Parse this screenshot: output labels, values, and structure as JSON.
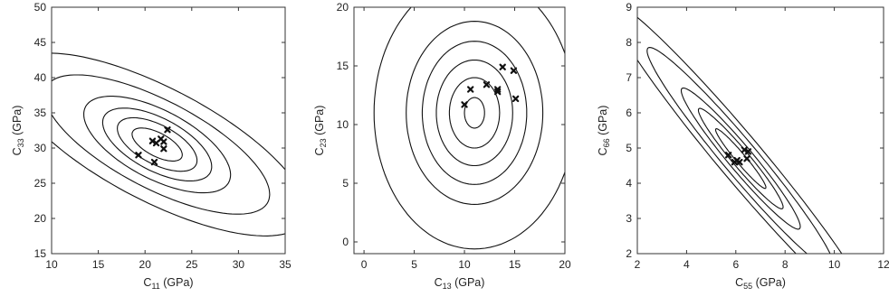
{
  "chart_data": [
    {
      "type": "contour",
      "xlabel": {
        "main": "C",
        "sub": "11",
        "unit": " (GPa)"
      },
      "ylabel": {
        "main": "C",
        "sub": "33",
        "unit": " (GPa)"
      },
      "xlim": [
        10,
        35
      ],
      "ylim": [
        15,
        50
      ],
      "xticks": [
        "10",
        "15",
        "20",
        "25",
        "30",
        "35"
      ],
      "yticks": [
        "15",
        "20",
        "25",
        "30",
        "35",
        "40",
        "45",
        "50"
      ],
      "grid": false,
      "contours": [
        {
          "center": [
            21.3,
            30.5
          ],
          "rx": 3.5,
          "ry": 12.0,
          "angle": 64
        },
        {
          "center": [
            21.3,
            30.5
          ],
          "rx": 1.2,
          "ry": 4.1,
          "angle": 64
        },
        {
          "center": [
            21.3,
            30.5
          ],
          "rx": 2.0,
          "ry": 6.5,
          "angle": 64
        },
        {
          "center": [
            21.3,
            30.5
          ],
          "rx": 2.7,
          "ry": 8.9,
          "angle": 64
        },
        {
          "center": [
            21.3,
            30.5
          ],
          "rx": 4.5,
          "ry": 18.5,
          "angle": 64
        },
        {
          "center": [
            21.3,
            30.5
          ],
          "rx": 5.8,
          "ry": 24.5,
          "angle": 64
        }
      ],
      "points": [
        {
          "x": 19.3,
          "y": 29.0
        },
        {
          "x": 20.8,
          "y": 31.0
        },
        {
          "x": 21.2,
          "y": 30.7
        },
        {
          "x": 21.7,
          "y": 31.3
        },
        {
          "x": 22.0,
          "y": 30.9
        },
        {
          "x": 22.0,
          "y": 29.9
        },
        {
          "x": 22.4,
          "y": 32.6
        },
        {
          "x": 21.0,
          "y": 28.0
        }
      ]
    },
    {
      "type": "contour",
      "xlabel": {
        "main": "C",
        "sub": "13",
        "unit": " (GPa)"
      },
      "ylabel": {
        "main": "C",
        "sub": "23",
        "unit": " (GPa)"
      },
      "xlim": [
        -1,
        20
      ],
      "ylim": [
        -1,
        20
      ],
      "xticks": [
        "0",
        "5",
        "10",
        "15",
        "20"
      ],
      "yticks": [
        "0",
        "5",
        "10",
        "15",
        "20"
      ],
      "grid": false,
      "contours": [
        {
          "center": [
            11.0,
            11.0
          ],
          "rx": 1.0,
          "ry": 1.3,
          "angle": 0
        },
        {
          "center": [
            11.0,
            11.0
          ],
          "rx": 2.5,
          "ry": 3.0,
          "angle": 0
        },
        {
          "center": [
            11.0,
            11.0
          ],
          "rx": 3.8,
          "ry": 4.5,
          "angle": 0
        },
        {
          "center": [
            11.0,
            11.0
          ],
          "rx": 5.2,
          "ry": 6.1,
          "angle": 0
        },
        {
          "center": [
            11.0,
            11.0
          ],
          "rx": 6.8,
          "ry": 7.8,
          "angle": 0
        },
        {
          "center": [
            11.0,
            11.0
          ],
          "rx": 10.0,
          "ry": 11.6,
          "angle": 0
        }
      ],
      "points": [
        {
          "x": 10.0,
          "y": 11.7
        },
        {
          "x": 10.6,
          "y": 13.0
        },
        {
          "x": 12.2,
          "y": 13.4
        },
        {
          "x": 13.3,
          "y": 12.8
        },
        {
          "x": 13.3,
          "y": 13.0
        },
        {
          "x": 13.8,
          "y": 14.9
        },
        {
          "x": 14.9,
          "y": 14.6
        },
        {
          "x": 15.1,
          "y": 12.2
        }
      ]
    },
    {
      "type": "contour",
      "xlabel": {
        "main": "C",
        "sub": "55",
        "unit": " (GPa)"
      },
      "ylabel": {
        "main": "C",
        "sub": "66",
        "unit": " (GPa)"
      },
      "xlim": [
        2,
        12
      ],
      "ylim": [
        2,
        9
      ],
      "xticks": [
        "2",
        "4",
        "6",
        "8",
        "10",
        "12"
      ],
      "yticks": [
        "2",
        "3",
        "4",
        "5",
        "6",
        "7",
        "8",
        "9"
      ],
      "grid": false,
      "contours": [
        {
          "center": [
            6.2,
            4.7
          ],
          "rx": 0.2,
          "ry": 1.1,
          "angle": 40
        },
        {
          "center": [
            6.2,
            4.7
          ],
          "rx": 0.35,
          "ry": 1.85,
          "angle": 40
        },
        {
          "center": [
            6.2,
            4.7
          ],
          "rx": 0.5,
          "ry": 2.6,
          "angle": 40
        },
        {
          "center": [
            6.2,
            4.7
          ],
          "rx": 0.7,
          "ry": 4.1,
          "angle": 40
        },
        {
          "center": [
            6.2,
            4.7
          ],
          "rx": 0.9,
          "ry": 5.8,
          "angle": 40
        }
      ],
      "points": [
        {
          "x": 5.7,
          "y": 4.8
        },
        {
          "x": 5.95,
          "y": 4.6
        },
        {
          "x": 6.05,
          "y": 4.65
        },
        {
          "x": 6.15,
          "y": 4.6
        },
        {
          "x": 6.35,
          "y": 4.95
        },
        {
          "x": 6.5,
          "y": 4.9
        },
        {
          "x": 6.45,
          "y": 4.7
        }
      ]
    }
  ]
}
